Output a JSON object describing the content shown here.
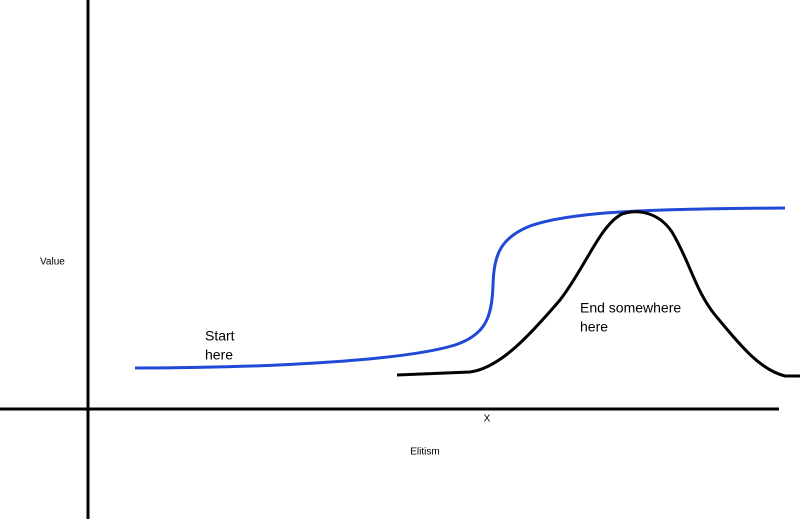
{
  "axes": {
    "y_label": "Value",
    "x_label": "Elitism",
    "x_mark": "X"
  },
  "annotations": {
    "start": [
      "Start",
      "here"
    ],
    "end": [
      "End somewhere",
      "here"
    ]
  }
}
